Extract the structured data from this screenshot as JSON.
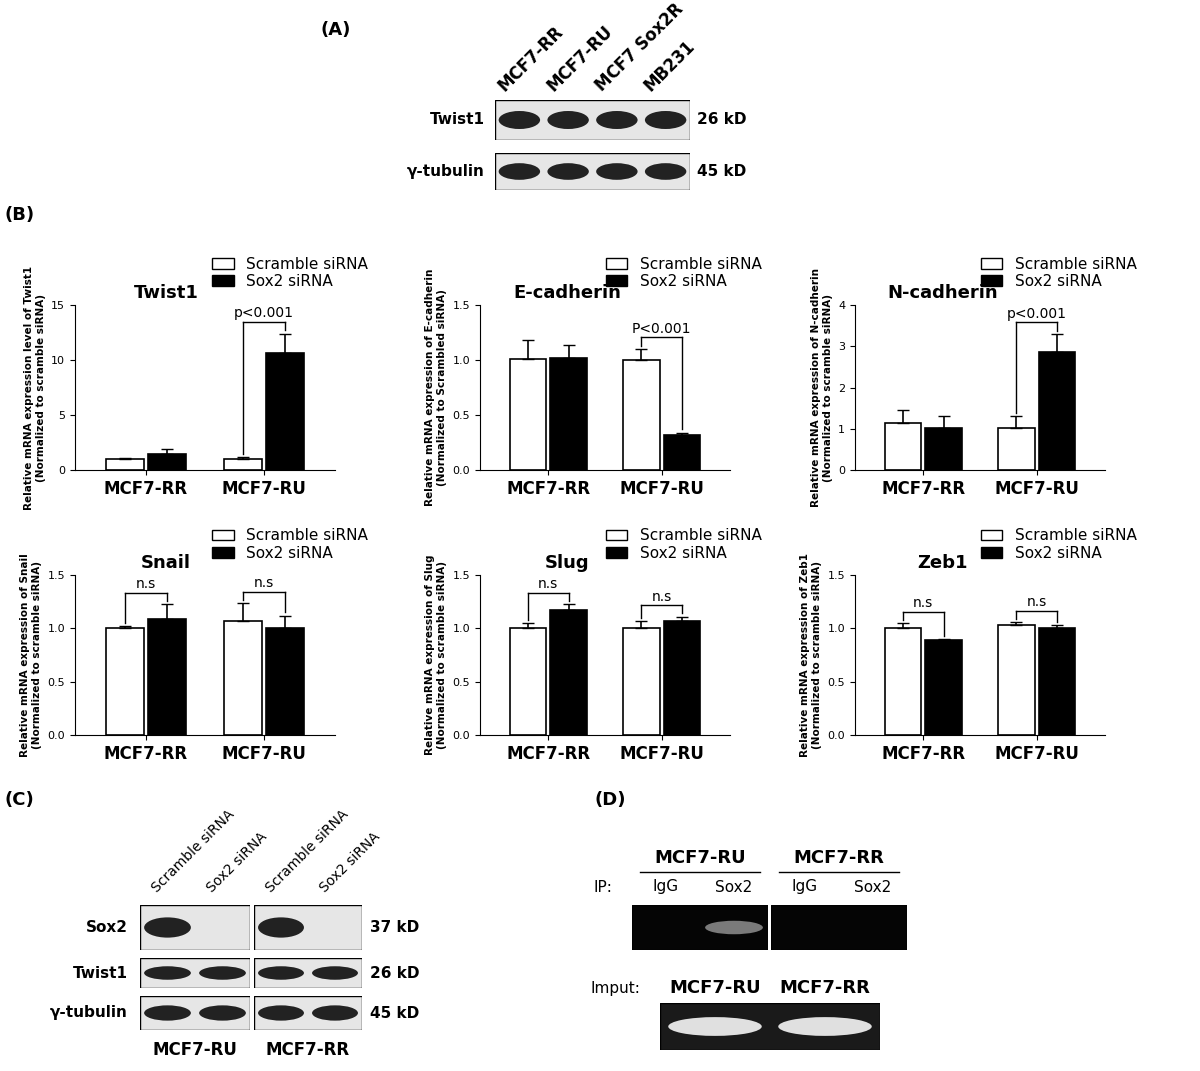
{
  "panel_labels": [
    "(A)",
    "(B)",
    "(C)",
    "(D)"
  ],
  "blot_A": {
    "lanes": [
      "MCF7-RR",
      "MCF7-RU",
      "MCF7 Sox2R",
      "MB231"
    ],
    "rows": [
      {
        "label": "Twist1",
        "size": "26 kD",
        "bands": [
          true,
          true,
          true,
          true
        ]
      },
      {
        "label": "γ-tubulin",
        "size": "45 kD",
        "bands": [
          true,
          true,
          true,
          true
        ]
      }
    ]
  },
  "chart_data": [
    {
      "type": "bar",
      "title": "Twist1",
      "y_label": "Relative mRNA expression level of Twist1\n(Normalized to scramble siRNA)",
      "categories": [
        "MCF7-RR",
        "MCF7-RU"
      ],
      "series": [
        {
          "name": "Scramble siRNA",
          "color": "#ffffff",
          "values": [
            1.0,
            1.0
          ],
          "errors": [
            0.1,
            0.15
          ]
        },
        {
          "name": "Sox2 siRNA",
          "color": "#000000",
          "values": [
            1.5,
            10.6
          ],
          "errors": [
            0.4,
            1.8
          ]
        }
      ],
      "ylim": [
        0,
        15
      ],
      "yticks": [
        0,
        5,
        10,
        15
      ],
      "legend": "upper right",
      "annotations": [
        {
          "text": "p<0.001",
          "category": "MCF7-RU"
        }
      ]
    },
    {
      "type": "bar",
      "title": "E-cadherin",
      "y_label": "Relative mRNA expression of E-cadherin\n(Normalized to Scrambled siRNA)",
      "categories": [
        "MCF7-RR",
        "MCF7-RU"
      ],
      "series": [
        {
          "name": "Scramble siRNA",
          "color": "#ffffff",
          "values": [
            1.01,
            1.0
          ],
          "errors": [
            0.17,
            0.1
          ]
        },
        {
          "name": "Sox2 siRNA",
          "color": "#000000",
          "values": [
            1.02,
            0.32
          ],
          "errors": [
            0.12,
            0.02
          ]
        }
      ],
      "ylim": [
        0,
        1.5
      ],
      "yticks": [
        {
          "value": 0,
          "label": "0.0"
        },
        0.5,
        1.0,
        1.5
      ],
      "legend": "upper right",
      "annotations": [
        {
          "text": "P<0.001",
          "category": "MCF7-RU"
        }
      ]
    },
    {
      "type": "bar",
      "title": "N-cadherin",
      "y_label": "Relative mRNA expression of N-cadherin\n(Normalized to scramble siRNA)",
      "categories": [
        "MCF7-RR",
        "MCF7-RU"
      ],
      "series": [
        {
          "name": "Scramble siRNA",
          "color": "#ffffff",
          "values": [
            1.15,
            1.02
          ],
          "errors": [
            0.3,
            0.28
          ]
        },
        {
          "name": "Sox2 siRNA",
          "color": "#000000",
          "values": [
            1.02,
            2.85
          ],
          "errors": [
            0.28,
            0.45
          ]
        }
      ],
      "ylim": [
        0,
        4
      ],
      "yticks": [
        0,
        1,
        2,
        3,
        4
      ],
      "legend": "upper right",
      "annotations": [
        {
          "text": "p<0.001",
          "category": "MCF7-RU"
        }
      ]
    },
    {
      "type": "bar",
      "title": "Snail",
      "y_label": "Relative mRNA expression of Snail\n(Normalized to scramble siRNA)",
      "categories": [
        "MCF7-RR",
        "MCF7-RU"
      ],
      "series": [
        {
          "name": "Scramble siRNA",
          "color": "#ffffff",
          "values": [
            1.0,
            1.07
          ],
          "errors": [
            0.02,
            0.17
          ]
        },
        {
          "name": "Sox2 siRNA",
          "color": "#000000",
          "values": [
            1.09,
            1.0
          ],
          "errors": [
            0.14,
            0.12
          ]
        }
      ],
      "ylim": [
        0,
        1.5
      ],
      "yticks": [
        {
          "value": 0,
          "label": "0.0"
        },
        0.5,
        1.0,
        1.5
      ],
      "legend": "upper right",
      "annotations": [
        {
          "text": "n.s",
          "category": "MCF7-RR"
        },
        {
          "text": "n.s",
          "category": "MCF7-RU"
        }
      ]
    },
    {
      "type": "bar",
      "title": "Slug",
      "y_label": "Relative mRNA expression of Slug\n(Normalized to scramble siRNA)",
      "categories": [
        "MCF7-RR",
        "MCF7-RU"
      ],
      "series": [
        {
          "name": "Scramble siRNA",
          "color": "#ffffff",
          "values": [
            1.0,
            1.0
          ],
          "errors": [
            0.05,
            0.07
          ]
        },
        {
          "name": "Sox2 siRNA",
          "color": "#000000",
          "values": [
            1.17,
            1.07
          ],
          "errors": [
            0.06,
            0.04
          ]
        }
      ],
      "ylim": [
        0,
        1.5
      ],
      "yticks": [
        {
          "value": 0,
          "label": "0.0"
        },
        0.5,
        1.0,
        1.5
      ],
      "legend": "upper right",
      "annotations": [
        {
          "text": "n.s",
          "category": "MCF7-RR"
        },
        {
          "text": "n.s",
          "category": "MCF7-RU"
        }
      ]
    },
    {
      "type": "bar",
      "title": "Zeb1",
      "y_label": "Relative mRNA expression of Zeb1\n(Normalized to scramble siRNA)",
      "categories": [
        "MCF7-RR",
        "MCF7-RU"
      ],
      "series": [
        {
          "name": "Scramble siRNA",
          "color": "#ffffff",
          "values": [
            1.0,
            1.03
          ],
          "errors": [
            0.05,
            0.03
          ]
        },
        {
          "name": "Sox2 siRNA",
          "color": "#000000",
          "values": [
            0.89,
            1.0
          ],
          "errors": [
            0.01,
            0.03
          ]
        }
      ],
      "ylim": [
        0,
        1.5
      ],
      "yticks": [
        {
          "value": 0,
          "label": "0.0"
        },
        0.5,
        1.0,
        1.5
      ],
      "legend": "upper right",
      "annotations": [
        {
          "text": "n.s",
          "category": "MCF7-RR"
        },
        {
          "text": "n.s",
          "category": "MCF7-RU"
        }
      ]
    }
  ],
  "blot_C": {
    "lanes": [
      "Scramble siRNA",
      "Sox2 siRNA",
      "Scramble siRNA",
      "Sox2 siRNA"
    ],
    "groups": [
      "MCF7-RU",
      "MCF7-RR"
    ],
    "rows": [
      {
        "label": "Sox2",
        "size": "37 kD",
        "bands": [
          true,
          false,
          true,
          false
        ]
      },
      {
        "label": "Twist1",
        "size": "26 kD",
        "bands": [
          true,
          true,
          true,
          true
        ]
      },
      {
        "label": "γ-tubulin",
        "size": "45 kD",
        "bands": [
          true,
          true,
          true,
          true
        ]
      }
    ]
  },
  "chip_D": {
    "ip_label": "IP:",
    "groups": [
      {
        "name": "MCF7-RU",
        "lanes": [
          "IgG",
          "Sox2"
        ],
        "bands": [
          false,
          true
        ]
      },
      {
        "name": "MCF7-RR",
        "lanes": [
          "IgG",
          "Sox2"
        ],
        "bands": [
          false,
          false
        ]
      }
    ],
    "input_label": "Imput:",
    "input_lanes": [
      "MCF7-RU",
      "MCF7-RR"
    ],
    "input_bands": [
      true,
      true
    ]
  }
}
